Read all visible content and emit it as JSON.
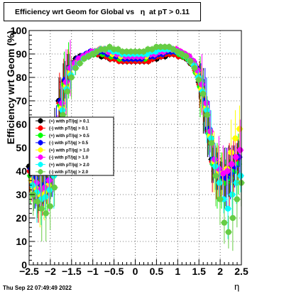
{
  "header": {
    "title": "Efficiency wrt Geom for Global vs   η  at pT > 0.11"
  },
  "footer": {
    "date": "Thu Sep 22 07:49:49 2022"
  },
  "chart_data": {
    "type": "scatter",
    "title": "Efficiency wrt Geom for Global vs   η  at pT > 0.11",
    "xlabel": "η",
    "ylabel": "Efficiency wrt Geom (%)",
    "xlim": [
      -2.5,
      2.5
    ],
    "ylim": [
      0,
      100
    ],
    "x_ticks": [
      "−2.5",
      "−2",
      "−1.5",
      "−1",
      "−0.5",
      "0",
      "0.5",
      "1",
      "1.5",
      "2",
      "2.5"
    ],
    "y_ticks": [
      "0",
      "10",
      "20",
      "30",
      "40",
      "50",
      "60",
      "70",
      "80",
      "90",
      "100"
    ],
    "grid": true,
    "legend_position": "left-middle",
    "legend": [
      {
        "label": "(+) with pT/|q| > 0.1",
        "color": "#000000"
      },
      {
        "label": "(-) with pT/|q| > 0.1",
        "color": "#ff0000"
      },
      {
        "label": "(+) with pT/|q| > 0.5",
        "color": "#00ff00"
      },
      {
        "label": "(-) with pT/|q| > 0.5",
        "color": "#0000ff"
      },
      {
        "label": "(+) with pT/|q| > 1.0",
        "color": "#ffff00"
      },
      {
        "label": "(-) with pT/|q| > 1.0",
        "color": "#ff00ff"
      },
      {
        "label": "(+) with pT/|q| > 2.0",
        "color": "#00ffff"
      },
      {
        "label": "(-) with pT/|q| > 2.0",
        "color": "#66cc44"
      }
    ],
    "x": [
      -2.45,
      -2.35,
      -2.25,
      -2.15,
      -2.05,
      -1.95,
      -1.85,
      -1.75,
      -1.65,
      -1.55,
      -1.45,
      -1.35,
      -1.25,
      -1.15,
      -1.05,
      -0.95,
      -0.85,
      -0.75,
      -0.65,
      -0.55,
      -0.45,
      -0.35,
      -0.25,
      -0.15,
      -0.05,
      0.05,
      0.15,
      0.25,
      0.35,
      0.45,
      0.55,
      0.65,
      0.75,
      0.85,
      0.95,
      1.05,
      1.15,
      1.25,
      1.35,
      1.45,
      1.55,
      1.65,
      1.75,
      1.85,
      1.95,
      2.05,
      2.15,
      2.25,
      2.35,
      2.45
    ],
    "series": [
      {
        "values": [
          42,
          36,
          33,
          34,
          37,
          42,
          55,
          70,
          78,
          84,
          86,
          88,
          89,
          89,
          89,
          90,
          90,
          89,
          89,
          88,
          88,
          88,
          87,
          87,
          87,
          87,
          87,
          87,
          87,
          88,
          88,
          89,
          89,
          90,
          90,
          90,
          89,
          88,
          86,
          84,
          78,
          70,
          58,
          45,
          40,
          38,
          37,
          40,
          42,
          45
        ]
      },
      {
        "values": [
          40,
          35,
          32,
          33,
          36,
          41,
          54,
          69,
          77,
          83,
          86,
          87,
          88,
          89,
          90,
          90,
          90,
          90,
          89,
          88,
          88,
          87,
          87,
          87,
          87,
          87,
          87,
          87,
          87,
          88,
          89,
          89,
          90,
          90,
          90,
          89,
          89,
          88,
          86,
          83,
          77,
          69,
          57,
          44,
          39,
          37,
          36,
          38,
          41,
          44
        ]
      },
      {
        "values": [
          38,
          34,
          31,
          32,
          35,
          40,
          53,
          68,
          77,
          83,
          85,
          87,
          88,
          89,
          90,
          90,
          91,
          90,
          90,
          89,
          89,
          88,
          88,
          88,
          88,
          88,
          88,
          88,
          89,
          89,
          90,
          90,
          91,
          91,
          91,
          90,
          89,
          88,
          86,
          82,
          76,
          68,
          56,
          43,
          38,
          36,
          35,
          37,
          40,
          43
        ]
      },
      {
        "values": [
          41,
          37,
          34,
          34,
          36,
          43,
          56,
          70,
          79,
          84,
          86,
          88,
          89,
          90,
          91,
          91,
          91,
          91,
          90,
          90,
          89,
          89,
          88,
          88,
          88,
          88,
          88,
          89,
          89,
          89,
          90,
          90,
          91,
          91,
          91,
          91,
          90,
          89,
          87,
          84,
          79,
          70,
          58,
          45,
          40,
          38,
          37,
          39,
          42,
          46
        ]
      },
      {
        "values": [
          36,
          33,
          30,
          31,
          34,
          39,
          52,
          67,
          76,
          82,
          85,
          87,
          88,
          89,
          90,
          91,
          92,
          92,
          91,
          90,
          90,
          89,
          89,
          89,
          89,
          89,
          89,
          89,
          90,
          90,
          91,
          91,
          92,
          92,
          92,
          91,
          90,
          89,
          86,
          82,
          75,
          67,
          55,
          44,
          40,
          39,
          41,
          48,
          54,
          58
        ]
      },
      {
        "values": [
          39,
          35,
          32,
          33,
          36,
          42,
          55,
          69,
          78,
          84,
          86,
          88,
          89,
          90,
          91,
          91,
          92,
          92,
          91,
          91,
          90,
          90,
          89,
          89,
          89,
          89,
          89,
          90,
          90,
          90,
          91,
          91,
          92,
          92,
          92,
          91,
          90,
          89,
          87,
          83,
          77,
          69,
          57,
          45,
          41,
          39,
          40,
          43,
          46,
          49
        ]
      },
      {
        "values": [
          34,
          31,
          28,
          29,
          32,
          38,
          51,
          66,
          75,
          81,
          84,
          86,
          88,
          89,
          90,
          91,
          92,
          92,
          92,
          91,
          91,
          90,
          90,
          90,
          90,
          90,
          90,
          90,
          91,
          91,
          92,
          92,
          92,
          92,
          91,
          90,
          89,
          87,
          85,
          80,
          74,
          66,
          54,
          42,
          35,
          28,
          24,
          30,
          35,
          38
        ]
      },
      {
        "values": [
          30,
          27,
          24,
          22,
          25,
          33,
          48,
          64,
          74,
          80,
          84,
          86,
          88,
          89,
          90,
          91,
          92,
          92,
          93,
          92,
          92,
          91,
          91,
          91,
          91,
          91,
          91,
          92,
          92,
          93,
          93,
          93,
          93,
          92,
          91,
          90,
          89,
          87,
          84,
          79,
          73,
          64,
          52,
          38,
          28,
          18,
          14,
          20,
          28,
          35
        ]
      }
    ]
  }
}
